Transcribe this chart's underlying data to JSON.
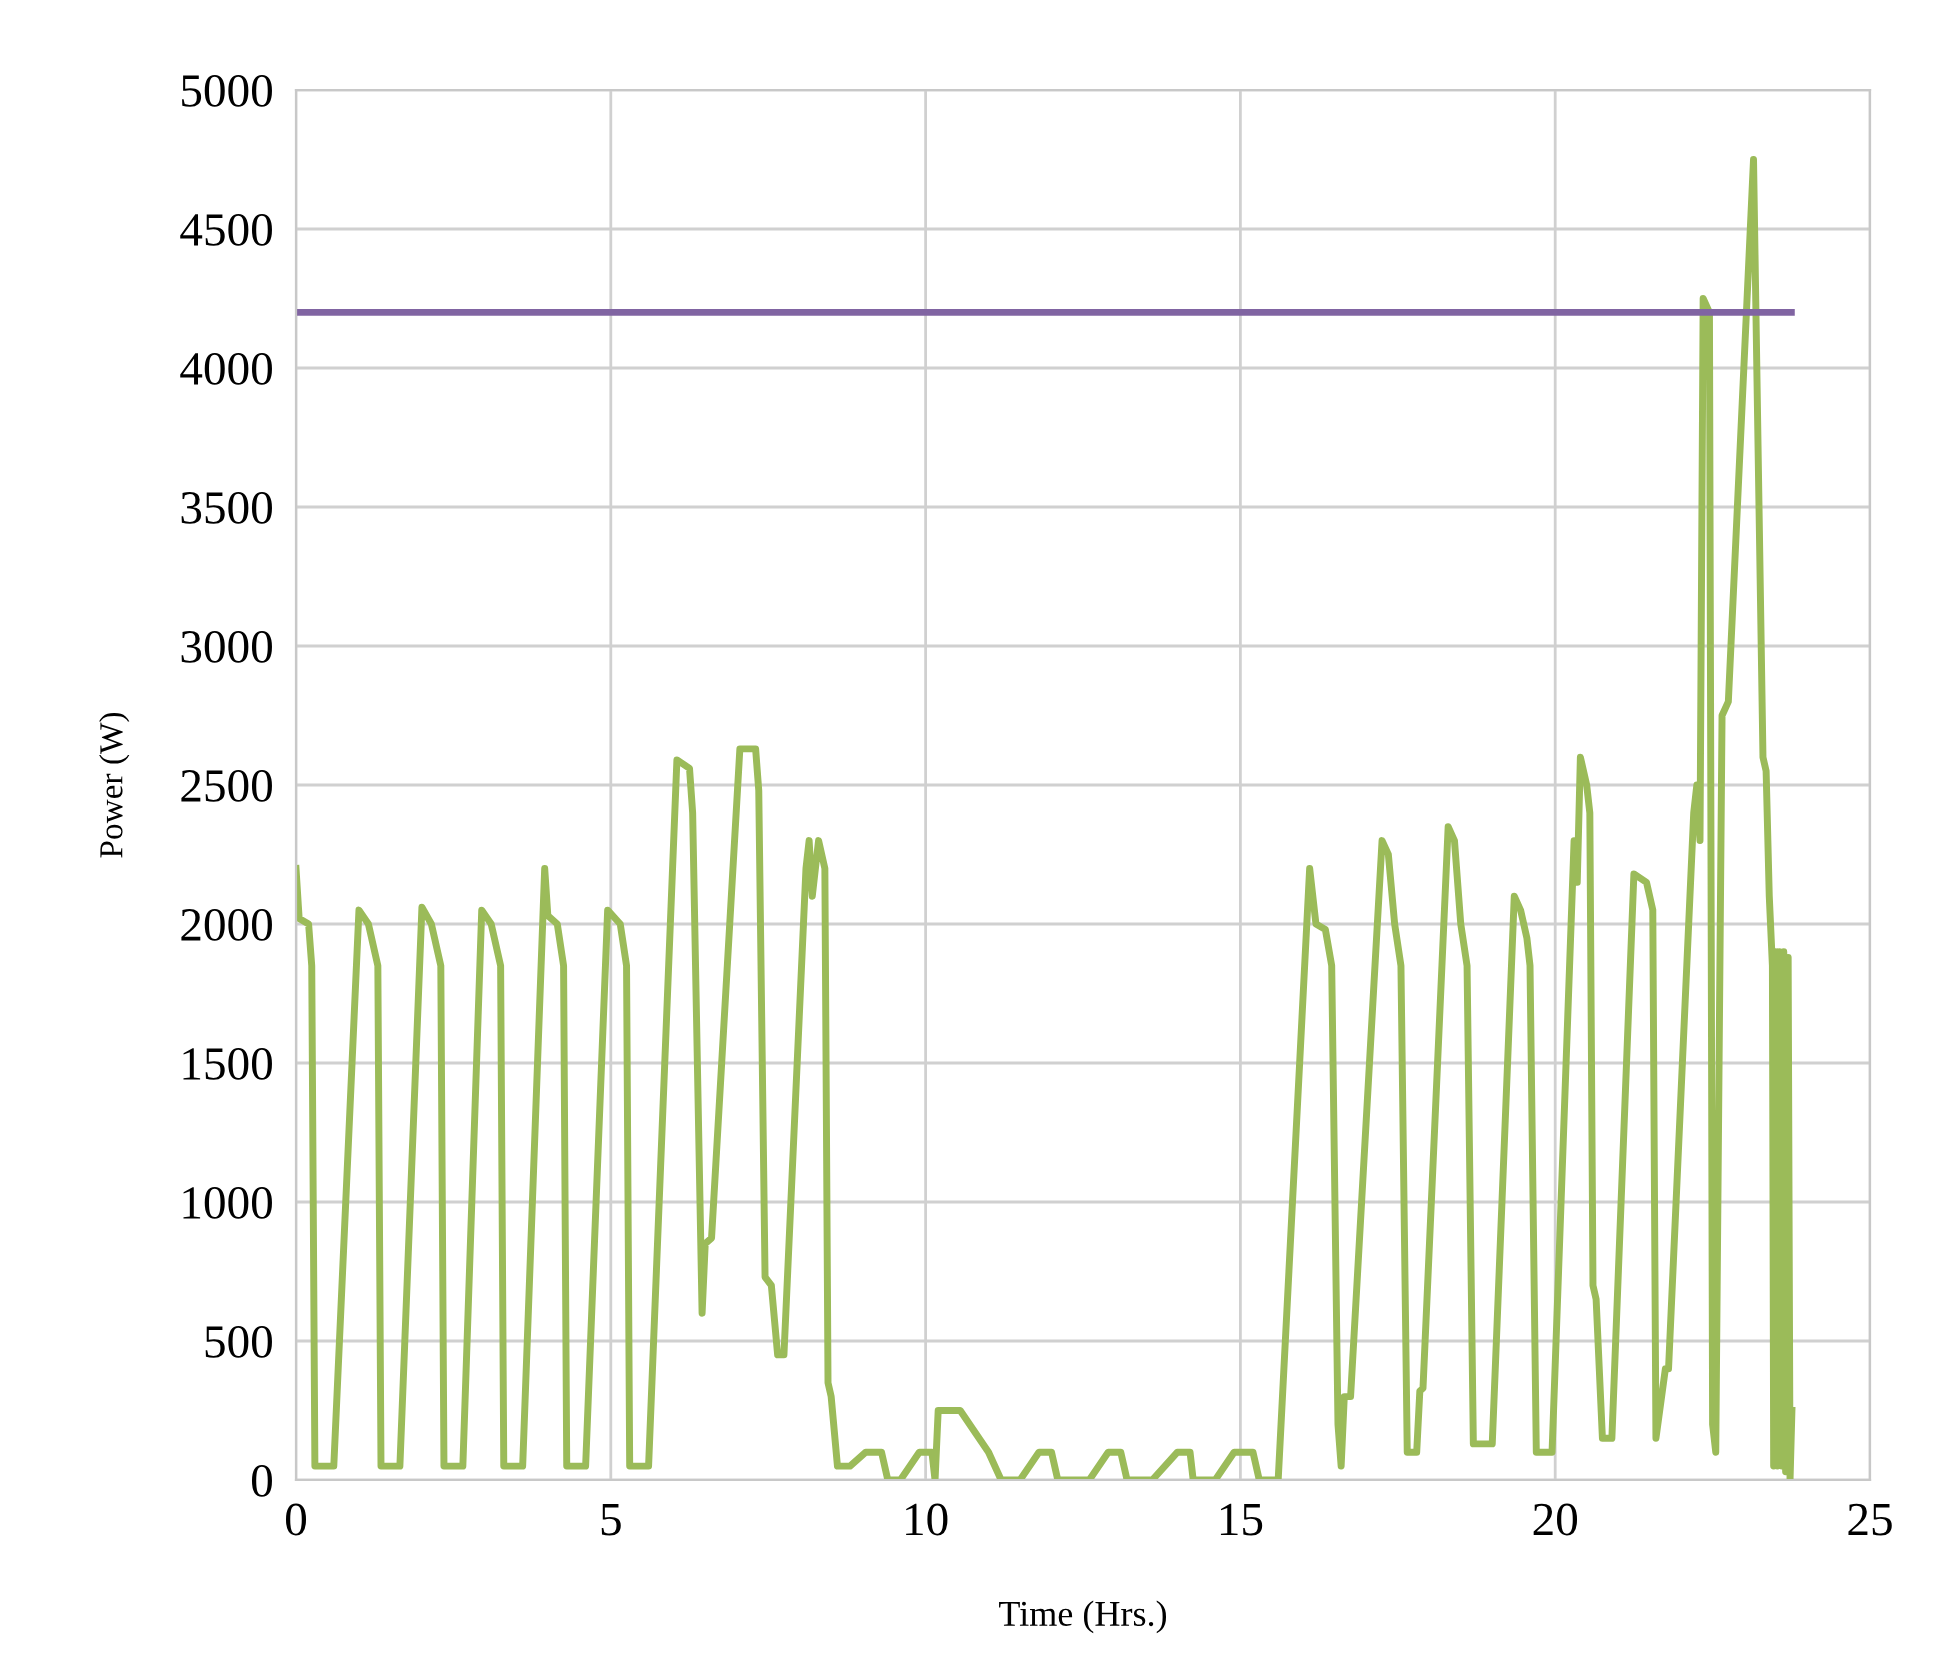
{
  "chart_data": {
    "type": "line",
    "xlabel": "Time (Hrs.)",
    "ylabel": "Power (W)",
    "xlim": [
      0,
      25
    ],
    "ylim": [
      0,
      5000
    ],
    "xticks": [
      0,
      5,
      10,
      15,
      20,
      25
    ],
    "yticks": [
      0,
      500,
      1000,
      1500,
      2000,
      2500,
      3000,
      3500,
      4000,
      4500,
      5000
    ],
    "grid": true,
    "legend": false,
    "series": [
      {
        "color": "#9bbb59",
        "x": [
          0,
          0.05,
          0.2,
          0.25,
          0.3,
          0.6,
          1.0,
          1.15,
          1.3,
          1.35,
          1.65,
          2.0,
          2.15,
          2.3,
          2.35,
          2.65,
          2.95,
          3.1,
          3.25,
          3.3,
          3.6,
          3.95,
          4.0,
          4.15,
          4.25,
          4.3,
          4.6,
          4.95,
          5.15,
          5.25,
          5.3,
          5.6,
          6.05,
          6.25,
          6.3,
          6.45,
          6.5,
          6.6,
          7.05,
          7.3,
          7.35,
          7.45,
          7.55,
          7.65,
          7.75,
          8.1,
          8.15,
          8.2,
          8.3,
          8.4,
          8.45,
          8.5,
          8.6,
          8.8,
          9.05,
          9.3,
          9.4,
          9.6,
          9.9,
          10.1,
          10.15,
          10.2,
          10.55,
          11.0,
          11.2,
          11.5,
          11.8,
          12.0,
          12.1,
          12.6,
          12.9,
          13.1,
          13.2,
          13.6,
          14.0,
          14.2,
          14.25,
          14.6,
          14.9,
          15.2,
          15.3,
          15.6,
          16.1,
          16.2,
          16.35,
          16.45,
          16.55,
          16.6,
          16.65,
          16.75,
          17.25,
          17.35,
          17.45,
          17.55,
          17.65,
          17.8,
          17.85,
          17.9,
          18.3,
          18.4,
          18.5,
          18.6,
          18.7,
          19.0,
          19.35,
          19.45,
          19.55,
          19.6,
          19.7,
          19.95,
          20.3,
          20.35,
          20.4,
          20.5,
          20.55,
          20.6,
          20.65,
          20.75,
          20.9,
          21.25,
          21.45,
          21.55,
          21.6,
          21.75,
          21.8,
          22.2,
          22.25,
          22.3,
          22.35,
          22.45,
          22.5,
          22.55,
          22.65,
          22.75,
          23.15,
          23.3,
          23.35,
          23.4,
          23.45,
          23.47,
          23.5,
          23.53,
          23.56,
          23.6,
          23.63,
          23.66,
          23.7,
          23.73,
          23.76
        ],
        "values": [
          2200,
          2020,
          2000,
          1850,
          50,
          50,
          2050,
          2000,
          1850,
          50,
          50,
          2060,
          2000,
          1850,
          50,
          50,
          2050,
          2000,
          1850,
          50,
          50,
          2200,
          2030,
          2000,
          1850,
          50,
          50,
          2050,
          2000,
          1850,
          50,
          50,
          2590,
          2560,
          2400,
          600,
          850,
          870,
          2630,
          2630,
          2480,
          730,
          700,
          450,
          450,
          2200,
          2300,
          2100,
          2300,
          2200,
          350,
          300,
          50,
          50,
          100,
          100,
          0,
          0,
          100,
          100,
          0,
          250,
          250,
          100,
          0,
          0,
          100,
          100,
          0,
          0,
          100,
          100,
          0,
          0,
          100,
          100,
          0,
          0,
          100,
          100,
          0,
          0,
          2200,
          2000,
          1980,
          1850,
          200,
          50,
          300,
          300,
          2300,
          2250,
          2000,
          1850,
          100,
          100,
          320,
          330,
          2350,
          2300,
          2000,
          1850,
          130,
          130,
          2100,
          2050,
          1950,
          1850,
          100,
          100,
          2300,
          2150,
          2600,
          2500,
          2400,
          700,
          650,
          150,
          150,
          2180,
          2150,
          2050,
          150,
          400,
          400,
          2400,
          2500,
          2300,
          4250,
          4200,
          200,
          100,
          2750,
          2800,
          4750,
          2600,
          2550,
          2100,
          1850,
          50,
          1900,
          50,
          1900,
          50,
          1900,
          30,
          1880,
          0,
          250
        ]
      },
      {
        "color": "#8064a2",
        "x": [
          0,
          23.75
        ],
        "values": [
          4200,
          4200
        ]
      }
    ]
  }
}
